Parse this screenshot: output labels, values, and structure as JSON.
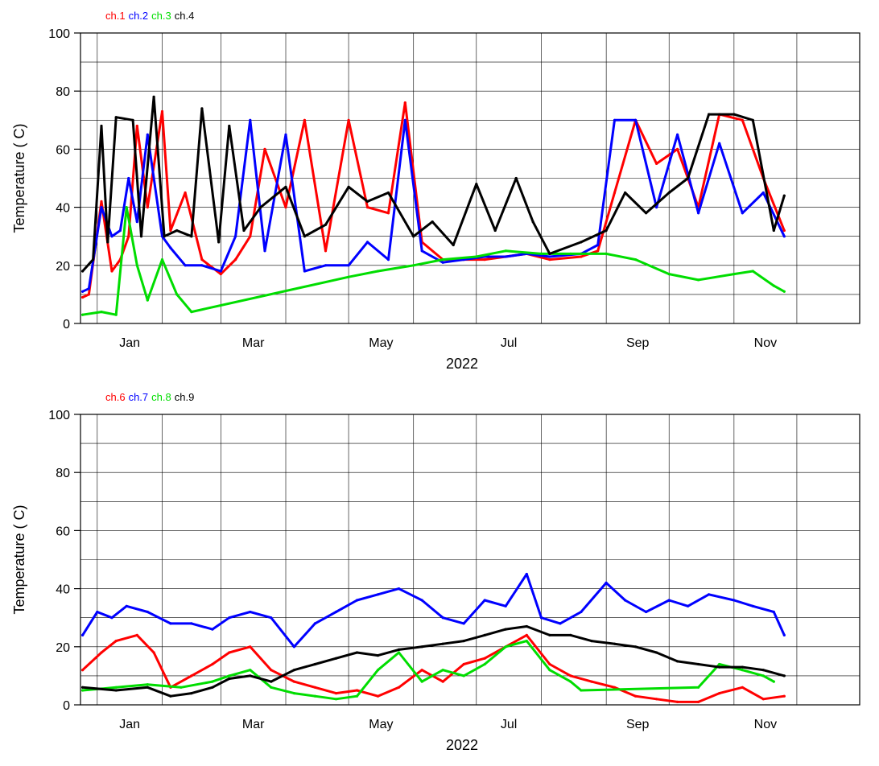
{
  "chart_data": [
    {
      "type": "line",
      "xlabel": "2022",
      "ylabel": "Temperature ( C)",
      "ylim": [
        0,
        100
      ],
      "yticks": [
        0,
        20,
        40,
        60,
        80,
        100
      ],
      "x_ticks": [
        "Jan",
        "Mar",
        "May",
        "Jul",
        "Sep",
        "Nov"
      ],
      "legend_placement": "top-left",
      "grid": true,
      "series": [
        {
          "name": "ch.1",
          "color": "#ff0000",
          "x": [
            "2021-12-25",
            "2021-12-28",
            "2022-01-03",
            "2022-01-08",
            "2022-01-12",
            "2022-01-16",
            "2022-01-20",
            "2022-01-25",
            "2022-02-01",
            "2022-02-05",
            "2022-02-12",
            "2022-02-20",
            "2022-03-01",
            "2022-03-08",
            "2022-03-15",
            "2022-03-22",
            "2022-04-01",
            "2022-04-10",
            "2022-04-20",
            "2022-05-01",
            "2022-05-10",
            "2022-05-20",
            "2022-05-28",
            "2022-06-05",
            "2022-06-15",
            "2022-06-25",
            "2022-07-05",
            "2022-07-15",
            "2022-07-25",
            "2022-08-05",
            "2022-08-20",
            "2022-08-28",
            "2022-09-05",
            "2022-09-15",
            "2022-09-25",
            "2022-10-05",
            "2022-10-15",
            "2022-10-25",
            "2022-11-05",
            "2022-11-15",
            "2022-11-25"
          ],
          "y": [
            9,
            10,
            42,
            18,
            22,
            30,
            68,
            40,
            73,
            32,
            45,
            22,
            17,
            22,
            30,
            60,
            40,
            70,
            25,
            70,
            40,
            38,
            76,
            28,
            22,
            22,
            22,
            23,
            24,
            22,
            23,
            25,
            45,
            70,
            55,
            60,
            40,
            72,
            70,
            50,
            32
          ]
        },
        {
          "name": "ch.2",
          "color": "#0000ff",
          "x": [
            "2021-12-25",
            "2021-12-28",
            "2022-01-03",
            "2022-01-08",
            "2022-01-12",
            "2022-01-16",
            "2022-01-20",
            "2022-01-25",
            "2022-02-01",
            "2022-02-05",
            "2022-02-12",
            "2022-02-20",
            "2022-03-01",
            "2022-03-08",
            "2022-03-15",
            "2022-03-22",
            "2022-04-01",
            "2022-04-10",
            "2022-04-20",
            "2022-05-01",
            "2022-05-10",
            "2022-05-20",
            "2022-05-28",
            "2022-06-05",
            "2022-06-15",
            "2022-06-25",
            "2022-07-05",
            "2022-07-15",
            "2022-07-25",
            "2022-08-05",
            "2022-08-20",
            "2022-08-28",
            "2022-09-05",
            "2022-09-15",
            "2022-09-25",
            "2022-10-05",
            "2022-10-15",
            "2022-10-25",
            "2022-11-05",
            "2022-11-15",
            "2022-11-25"
          ],
          "y": [
            11,
            12,
            40,
            30,
            32,
            50,
            35,
            65,
            30,
            26,
            20,
            20,
            18,
            30,
            70,
            25,
            65,
            18,
            20,
            20,
            28,
            22,
            70,
            25,
            21,
            22,
            23,
            23,
            24,
            23,
            24,
            27,
            70,
            70,
            40,
            65,
            38,
            62,
            38,
            45,
            30
          ]
        },
        {
          "name": "ch.3",
          "color": "#00dd00",
          "x": [
            "2021-12-25",
            "2022-01-03",
            "2022-01-10",
            "2022-01-15",
            "2022-01-20",
            "2022-01-25",
            "2022-02-01",
            "2022-02-08",
            "2022-02-15",
            "2022-05-01",
            "2022-05-15",
            "2022-06-01",
            "2022-06-15",
            "2022-07-01",
            "2022-07-15",
            "2022-08-01",
            "2022-08-15",
            "2022-09-01",
            "2022-09-15",
            "2022-10-01",
            "2022-10-15",
            "2022-11-01",
            "2022-11-10",
            "2022-11-20",
            "2022-11-25"
          ],
          "y": [
            3,
            4,
            3,
            40,
            20,
            8,
            22,
            10,
            4,
            16,
            18,
            20,
            22,
            23,
            25,
            24,
            24,
            24,
            22,
            17,
            15,
            17,
            18,
            13,
            11
          ]
        },
        {
          "name": "ch.4",
          "color": "#000000",
          "x": [
            "2021-12-25",
            "2021-12-30",
            "2022-01-03",
            "2022-01-06",
            "2022-01-10",
            "2022-01-18",
            "2022-01-22",
            "2022-01-28",
            "2022-02-02",
            "2022-02-08",
            "2022-02-15",
            "2022-02-20",
            "2022-02-28",
            "2022-03-05",
            "2022-03-12",
            "2022-03-20",
            "2022-04-01",
            "2022-04-10",
            "2022-04-20",
            "2022-05-01",
            "2022-05-10",
            "2022-05-20",
            "2022-06-01",
            "2022-06-10",
            "2022-06-20",
            "2022-07-01",
            "2022-07-10",
            "2022-07-20",
            "2022-07-28",
            "2022-08-05",
            "2022-08-20",
            "2022-09-01",
            "2022-09-10",
            "2022-09-20",
            "2022-10-01",
            "2022-10-10",
            "2022-10-20",
            "2022-11-01",
            "2022-11-10",
            "2022-11-20",
            "2022-11-25"
          ],
          "y": [
            18,
            22,
            68,
            28,
            71,
            70,
            30,
            78,
            30,
            32,
            30,
            74,
            28,
            68,
            32,
            40,
            47,
            30,
            34,
            47,
            42,
            45,
            30,
            35,
            27,
            48,
            32,
            50,
            35,
            24,
            28,
            32,
            45,
            38,
            45,
            50,
            72,
            72,
            70,
            32,
            44
          ]
        }
      ]
    },
    {
      "type": "line",
      "xlabel": "2022",
      "ylabel": "Temperature ( C)",
      "ylim": [
        0,
        100
      ],
      "yticks": [
        0,
        20,
        40,
        60,
        80,
        100
      ],
      "x_ticks": [
        "Jan",
        "Mar",
        "May",
        "Jul",
        "Sep",
        "Nov"
      ],
      "legend_placement": "top-left",
      "grid": true,
      "series": [
        {
          "name": "ch.6",
          "color": "#ff0000",
          "x": [
            "2021-12-25",
            "2022-01-03",
            "2022-01-10",
            "2022-01-20",
            "2022-01-28",
            "2022-02-05",
            "2022-02-15",
            "2022-02-25",
            "2022-03-05",
            "2022-03-15",
            "2022-03-25",
            "2022-04-05",
            "2022-04-15",
            "2022-04-25",
            "2022-05-05",
            "2022-05-15",
            "2022-05-25",
            "2022-06-05",
            "2022-06-15",
            "2022-06-25",
            "2022-07-05",
            "2022-07-15",
            "2022-07-25",
            "2022-08-05",
            "2022-08-15",
            "2022-08-25",
            "2022-09-05",
            "2022-09-15",
            "2022-09-25",
            "2022-10-05",
            "2022-10-15",
            "2022-10-25",
            "2022-11-05",
            "2022-11-15",
            "2022-11-25"
          ],
          "y": [
            12,
            18,
            22,
            24,
            18,
            6,
            10,
            14,
            18,
            20,
            12,
            8,
            6,
            4,
            5,
            3,
            6,
            12,
            8,
            14,
            16,
            20,
            24,
            14,
            10,
            8,
            6,
            3,
            2,
            1,
            1,
            4,
            6,
            2,
            3
          ]
        },
        {
          "name": "ch.7",
          "color": "#0000ff",
          "x": [
            "2021-12-25",
            "2022-01-01",
            "2022-01-08",
            "2022-01-15",
            "2022-01-25",
            "2022-02-05",
            "2022-02-15",
            "2022-02-25",
            "2022-03-05",
            "2022-03-15",
            "2022-03-25",
            "2022-04-05",
            "2022-04-15",
            "2022-04-25",
            "2022-05-05",
            "2022-05-15",
            "2022-05-25",
            "2022-06-05",
            "2022-06-15",
            "2022-06-25",
            "2022-07-05",
            "2022-07-15",
            "2022-07-25",
            "2022-08-01",
            "2022-08-10",
            "2022-08-20",
            "2022-09-01",
            "2022-09-10",
            "2022-09-20",
            "2022-10-01",
            "2022-10-10",
            "2022-10-20",
            "2022-11-01",
            "2022-11-10",
            "2022-11-20",
            "2022-11-25"
          ],
          "y": [
            24,
            32,
            30,
            34,
            32,
            28,
            28,
            26,
            30,
            32,
            30,
            20,
            28,
            32,
            36,
            38,
            40,
            36,
            30,
            28,
            36,
            34,
            45,
            30,
            28,
            32,
            42,
            36,
            32,
            36,
            34,
            38,
            36,
            34,
            32,
            24
          ]
        },
        {
          "name": "ch.8",
          "color": "#00dd00",
          "x": [
            "2021-12-25",
            "2022-01-10",
            "2022-01-25",
            "2022-02-10",
            "2022-02-25",
            "2022-03-05",
            "2022-03-15",
            "2022-03-25",
            "2022-04-05",
            "2022-04-15",
            "2022-04-25",
            "2022-05-05",
            "2022-05-15",
            "2022-05-25",
            "2022-06-05",
            "2022-06-15",
            "2022-06-25",
            "2022-07-05",
            "2022-07-15",
            "2022-07-25",
            "2022-08-05",
            "2022-08-15",
            "2022-08-20",
            "2022-10-15",
            "2022-10-25",
            "2022-11-05",
            "2022-11-15",
            "2022-11-20"
          ],
          "y": [
            5,
            6,
            7,
            6,
            8,
            10,
            12,
            6,
            4,
            3,
            2,
            3,
            12,
            18,
            8,
            12,
            10,
            14,
            20,
            22,
            12,
            8,
            5,
            6,
            14,
            12,
            10,
            8
          ]
        },
        {
          "name": "ch.9",
          "color": "#000000",
          "x": [
            "2021-12-25",
            "2022-01-10",
            "2022-01-25",
            "2022-02-05",
            "2022-02-15",
            "2022-02-25",
            "2022-03-05",
            "2022-03-15",
            "2022-03-25",
            "2022-04-05",
            "2022-04-15",
            "2022-04-25",
            "2022-05-05",
            "2022-05-15",
            "2022-05-25",
            "2022-06-05",
            "2022-06-15",
            "2022-06-25",
            "2022-07-05",
            "2022-07-15",
            "2022-07-25",
            "2022-08-05",
            "2022-08-15",
            "2022-08-25",
            "2022-09-05",
            "2022-09-15",
            "2022-09-25",
            "2022-10-05",
            "2022-10-15",
            "2022-10-25",
            "2022-11-05",
            "2022-11-15",
            "2022-11-25"
          ],
          "y": [
            6,
            5,
            6,
            3,
            4,
            6,
            9,
            10,
            8,
            12,
            14,
            16,
            18,
            17,
            19,
            20,
            21,
            22,
            24,
            26,
            27,
            24,
            24,
            22,
            21,
            20,
            18,
            15,
            14,
            13,
            13,
            12,
            10
          ]
        }
      ]
    }
  ]
}
